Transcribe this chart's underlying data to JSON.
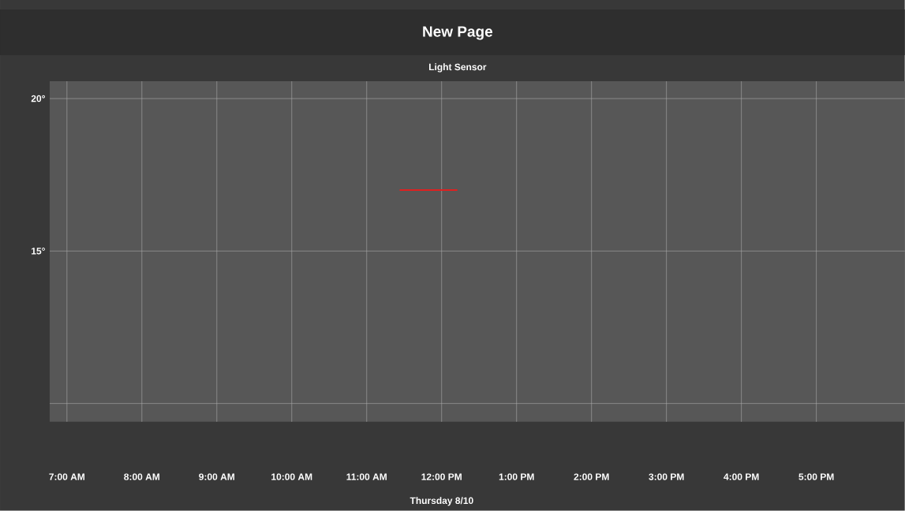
{
  "chart_data": {
    "type": "line",
    "title": "New Page",
    "subtitle": "Light Sensor",
    "xlabel": "Thursday 8/10",
    "x": [
      11.44,
      12.21
    ],
    "series": [
      {
        "color": "#e02020",
        "values": [
          17,
          17
        ]
      }
    ],
    "xlim": [
      6.77,
      18.18
    ],
    "xticks": [
      {
        "value": 7,
        "label": "7:00 AM"
      },
      {
        "value": 8,
        "label": "8:00 AM"
      },
      {
        "value": 9,
        "label": "9:00 AM"
      },
      {
        "value": 10,
        "label": "10:00 AM"
      },
      {
        "value": 11,
        "label": "11:00 AM"
      },
      {
        "value": 12,
        "label": "12:00 PM"
      },
      {
        "value": 13,
        "label": "1:00 PM"
      },
      {
        "value": 14,
        "label": "2:00 PM"
      },
      {
        "value": 15,
        "label": "3:00 PM"
      },
      {
        "value": 16,
        "label": "4:00 PM"
      },
      {
        "value": 17,
        "label": "5:00 PM"
      }
    ],
    "ylim": [
      9.4,
      20.57
    ],
    "yticks": [
      {
        "value": 10,
        "label": null
      },
      {
        "value": 15,
        "label": "15°"
      },
      {
        "value": 20,
        "label": "20°"
      }
    ],
    "grid": true,
    "marker": "none",
    "line_style": "solid"
  }
}
